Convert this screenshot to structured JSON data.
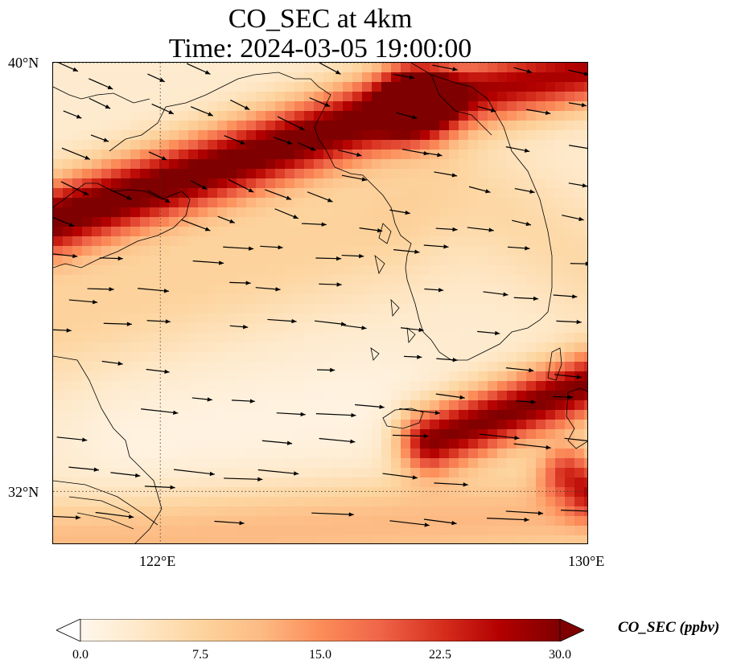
{
  "title_line1": "CO_SEC at 4km",
  "title_line2": "Time: 2024-03-05 19:00:00",
  "map": {
    "lon_range": [
      120,
      130
    ],
    "lat_range": [
      31,
      40
    ],
    "gridlines": {
      "lon": [
        122,
        130
      ],
      "lat": [
        32,
        40
      ]
    },
    "lat_labels": [
      "40°N",
      "32°N"
    ],
    "lon_labels": [
      "122°E",
      "130°E"
    ],
    "field": "CO_SEC",
    "overlay": "wind vectors",
    "colormap": "OrRd"
  },
  "colorbar": {
    "label": "CO_SEC (ppbv)",
    "ticks": [
      "0.0",
      "7.5",
      "15.0",
      "22.5",
      "30.0"
    ],
    "range": [
      0.0,
      30.0
    ],
    "extend": "both",
    "colors": [
      "#fff7ec",
      "#fee8c8",
      "#fdd49e",
      "#fdbb84",
      "#fc8d59",
      "#ef6548",
      "#d7301f",
      "#b30000",
      "#7f0000"
    ]
  }
}
